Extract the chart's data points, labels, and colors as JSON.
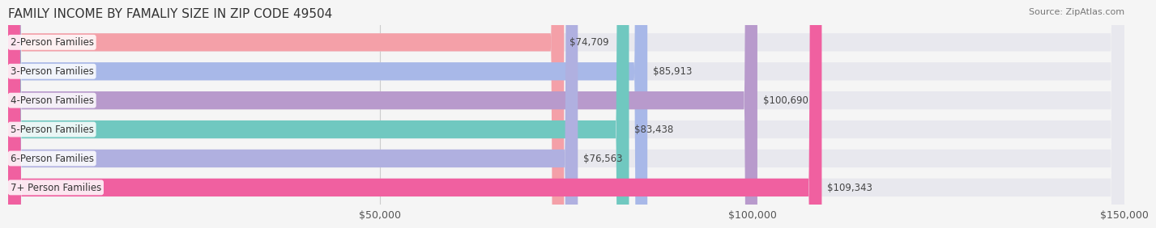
{
  "title": "FAMILY INCOME BY FAMALIY SIZE IN ZIP CODE 49504",
  "source": "Source: ZipAtlas.com",
  "categories": [
    "2-Person Families",
    "3-Person Families",
    "4-Person Families",
    "5-Person Families",
    "6-Person Families",
    "7+ Person Families"
  ],
  "values": [
    74709,
    85913,
    100690,
    83438,
    76563,
    109343
  ],
  "labels": [
    "$74,709",
    "$85,913",
    "$100,690",
    "$83,438",
    "$76,563",
    "$109,343"
  ],
  "bar_colors": [
    "#f4a0a8",
    "#a8b8e8",
    "#b89acc",
    "#70c8c0",
    "#b0b0e0",
    "#f060a0"
  ],
  "bar_edge_colors": [
    "#e88898",
    "#98a8d8",
    "#a88abc",
    "#60b8b0",
    "#a0a0d0",
    "#e05090"
  ],
  "background_color": "#f5f5f5",
  "bar_bg_color": "#e8e8ee",
  "xlim": [
    0,
    150000
  ],
  "xticks": [
    0,
    50000,
    100000,
    150000
  ],
  "xtick_labels": [
    "",
    "$50,000",
    "$100,000",
    "$150,000"
  ],
  "title_fontsize": 11,
  "label_fontsize": 8.5,
  "tick_fontsize": 9,
  "bar_height": 0.62,
  "fig_width": 14.06,
  "fig_height": 3.05
}
